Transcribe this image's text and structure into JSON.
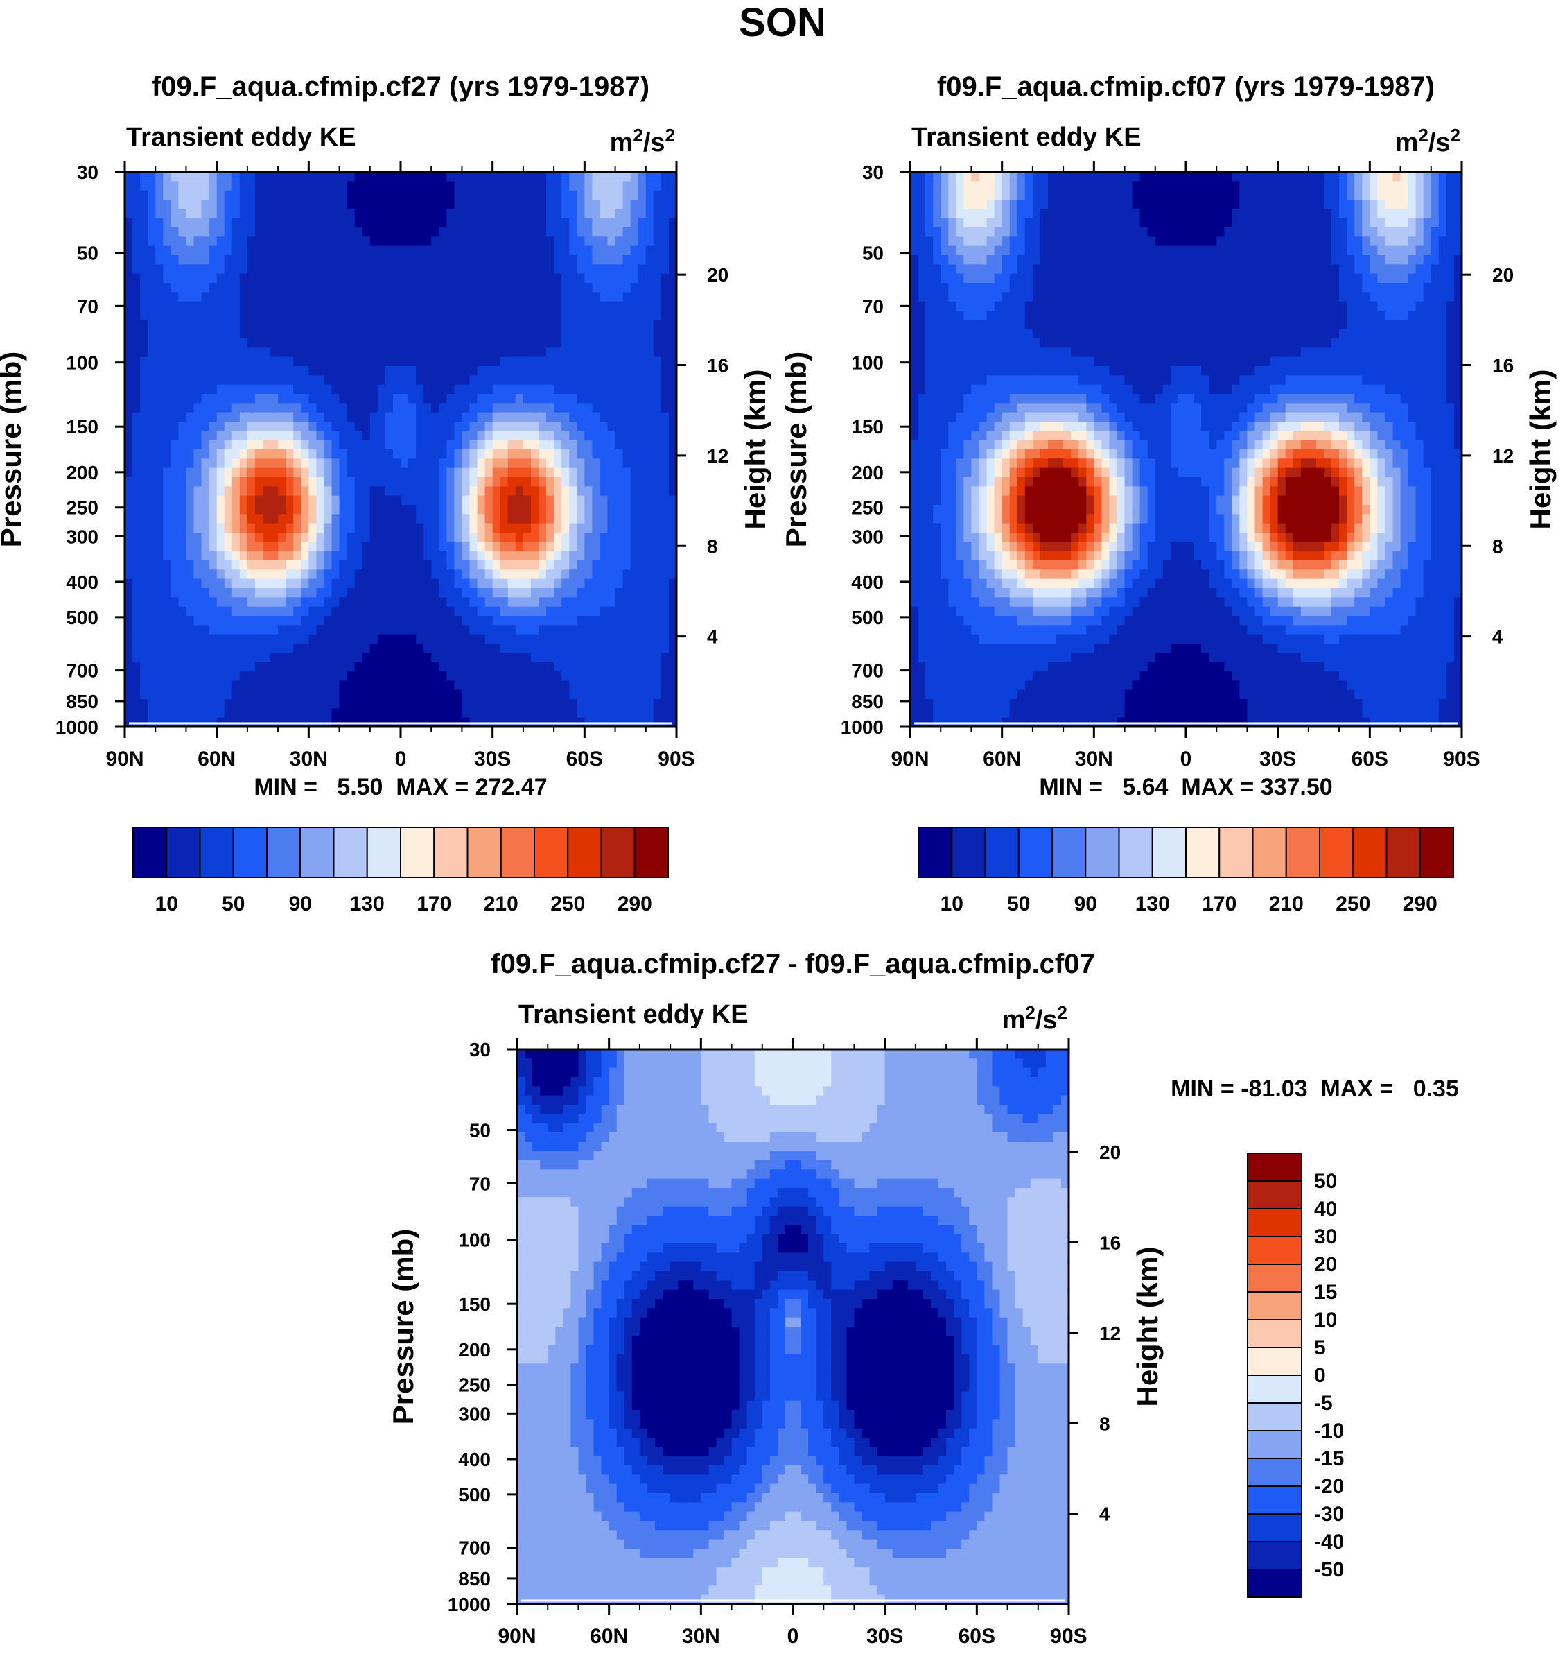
{
  "figure": {
    "season": "SON"
  },
  "chart_data": [
    {
      "type": "heatmap",
      "title": "f09.F_aqua.cfmip.cf27 (yrs 1979-1987)",
      "subtitle_left": "Transient eddy KE",
      "units": {
        "base": "m",
        "exp1": "2",
        "sep": "/s",
        "exp2": "2"
      },
      "ylabel": "Pressure (mb)",
      "ylabel_right": "Height (km)",
      "x_ticks": [
        "90N",
        "60N",
        "30N",
        "0",
        "30S",
        "60S",
        "90S"
      ],
      "x_range": [
        -90,
        90
      ],
      "y_ticks": [
        "30",
        "50",
        "70",
        "100",
        "150",
        "200",
        "250",
        "300",
        "400",
        "500",
        "700",
        "850",
        "1000"
      ],
      "y_range_mb": [
        30,
        1000
      ],
      "height_ticks": [
        "20",
        "16",
        "12",
        "8",
        "4"
      ],
      "stats": "MIN =   5.50  MAX = 272.47",
      "min": 5.5,
      "max": 272.47,
      "lat_shift": 0,
      "lat_width": 13,
      "jets": [
        {
          "lat": -38,
          "amp": 262
        },
        {
          "lat": 42,
          "amp": 262
        }
      ],
      "polar_amp": 105,
      "colorbar_labels": [
        "10",
        "50",
        "90",
        "130",
        "170",
        "210",
        "250",
        "290"
      ]
    },
    {
      "type": "heatmap",
      "title": "f09.F_aqua.cfmip.cf07 (yrs 1979-1987)",
      "subtitle_left": "Transient eddy KE",
      "units": {
        "base": "m",
        "exp1": "2",
        "sep": "/s",
        "exp2": "2"
      },
      "ylabel": "Pressure (mb)",
      "ylabel_right": "Height (km)",
      "x_ticks": [
        "90N",
        "60N",
        "30N",
        "0",
        "30S",
        "60S",
        "90S"
      ],
      "x_range": [
        -90,
        90
      ],
      "y_ticks": [
        "30",
        "50",
        "70",
        "100",
        "150",
        "200",
        "250",
        "300",
        "400",
        "500",
        "700",
        "850",
        "1000"
      ],
      "y_range_mb": [
        30,
        1000
      ],
      "height_ticks": [
        "20",
        "16",
        "12",
        "8",
        "4"
      ],
      "stats": "MIN =   5.64  MAX = 337.50",
      "min": 5.64,
      "max": 337.5,
      "lat_shift": 0,
      "lat_width": 15,
      "jets": [
        {
          "lat": -40,
          "amp": 330
        },
        {
          "lat": 42,
          "amp": 328
        }
      ],
      "polar_amp": 150,
      "colorbar_labels": [
        "10",
        "50",
        "90",
        "130",
        "170",
        "210",
        "250",
        "290"
      ]
    },
    {
      "type": "heatmap",
      "title": "f09.F_aqua.cfmip.cf27 - f09.F_aqua.cfmip.cf07",
      "subtitle_left": "Transient eddy KE",
      "units": {
        "base": "m",
        "exp1": "2",
        "sep": "/s",
        "exp2": "2"
      },
      "ylabel": "Pressure (mb)",
      "ylabel_right": "Height (km)",
      "x_ticks": [
        "90N",
        "60N",
        "30N",
        "0",
        "30S",
        "60S",
        "90S"
      ],
      "x_range": [
        -90,
        90
      ],
      "y_ticks": [
        "30",
        "50",
        "70",
        "100",
        "150",
        "200",
        "250",
        "300",
        "400",
        "500",
        "700",
        "850",
        "1000"
      ],
      "y_range_mb": [
        30,
        1000
      ],
      "height_ticks": [
        "20",
        "16",
        "12",
        "8",
        "4"
      ],
      "stats": "MIN = -81.03  MAX =   0.35",
      "min": -81.03,
      "max": 0.35,
      "colorbar_labels": [
        "50",
        "40",
        "30",
        "20",
        "15",
        "10",
        "5",
        "0",
        "-5",
        "-10",
        "-15",
        "-20",
        "-30",
        "-40",
        "-50"
      ]
    }
  ],
  "colormaps": {
    "mean_levels": [
      10,
      30,
      50,
      70,
      90,
      110,
      130,
      150,
      170,
      190,
      210,
      230,
      250,
      270,
      290
    ],
    "diff_levels": [
      -50,
      -40,
      -30,
      -20,
      -15,
      -10,
      -5,
      0,
      5,
      10,
      15,
      20,
      30,
      40,
      50
    ],
    "colors": [
      "#00008b",
      "#0a24b4",
      "#0d3fd9",
      "#1e5af5",
      "#4d7bf0",
      "#85a5f2",
      "#b3c8f7",
      "#d9e8fb",
      "#feeede",
      "#fbc8b0",
      "#f7a37c",
      "#f5744a",
      "#f4511e",
      "#df3300",
      "#b22211",
      "#8b0000"
    ]
  }
}
